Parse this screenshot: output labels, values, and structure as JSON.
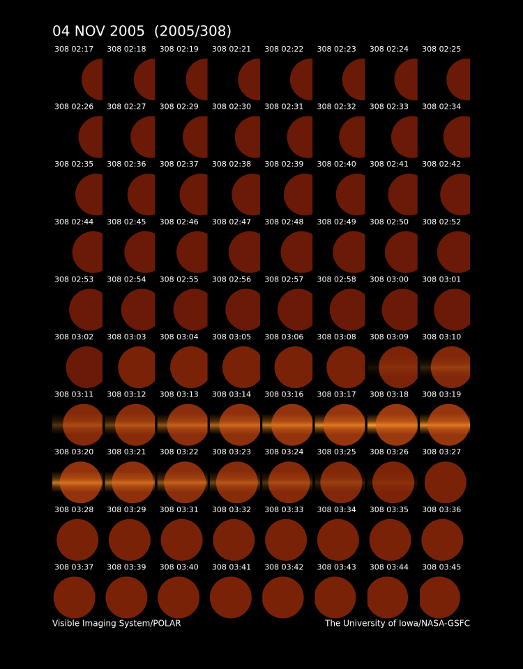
{
  "header": {
    "title": "04 NOV 2005  (2005/308)"
  },
  "frames": [
    "308 02:17",
    "308 02:18",
    "308 02:19",
    "308 02:21",
    "308 02:22",
    "308 02:23",
    "308 02:24",
    "308 02:25",
    "308 02:26",
    "308 02:27",
    "308 02:29",
    "308 02:30",
    "308 02:31",
    "308 02:32",
    "308 02:33",
    "308 02:34",
    "308 02:35",
    "308 02:36",
    "308 02:37",
    "308 02:38",
    "308 02:39",
    "308 02:40",
    "308 02:41",
    "308 02:42",
    "308 02:44",
    "308 02:45",
    "308 02:46",
    "308 02:47",
    "308 02:48",
    "308 02:49",
    "308 02:50",
    "308 02:52",
    "308 02:53",
    "308 02:54",
    "308 02:55",
    "308 02:56",
    "308 02:57",
    "308 02:58",
    "308 03:00",
    "308 03:01",
    "308 03:02",
    "308 03:03",
    "308 03:04",
    "308 03:05",
    "308 03:06",
    "308 03:08",
    "308 03:09",
    "308 03:10",
    "308 03:11",
    "308 03:12",
    "308 03:13",
    "308 03:14",
    "308 03:16",
    "308 03:17",
    "308 03:18",
    "308 03:19",
    "308 03:20",
    "308 03:21",
    "308 03:22",
    "308 03:23",
    "308 03:24",
    "308 03:25",
    "308 03:26",
    "308 03:27",
    "308 03:28",
    "308 03:29",
    "308 03:31",
    "308 03:32",
    "308 03:33",
    "308 03:34",
    "308 03:35",
    "308 03:36",
    "308 03:37",
    "308 03:39",
    "308 03:40",
    "308 03:41",
    "308 03:42",
    "308 03:43",
    "308 03:44",
    "308 03:45"
  ],
  "footer": {
    "left": "Visible Imaging System/POLAR",
    "right": "The University of Iowa/NASA-GSFC"
  }
}
